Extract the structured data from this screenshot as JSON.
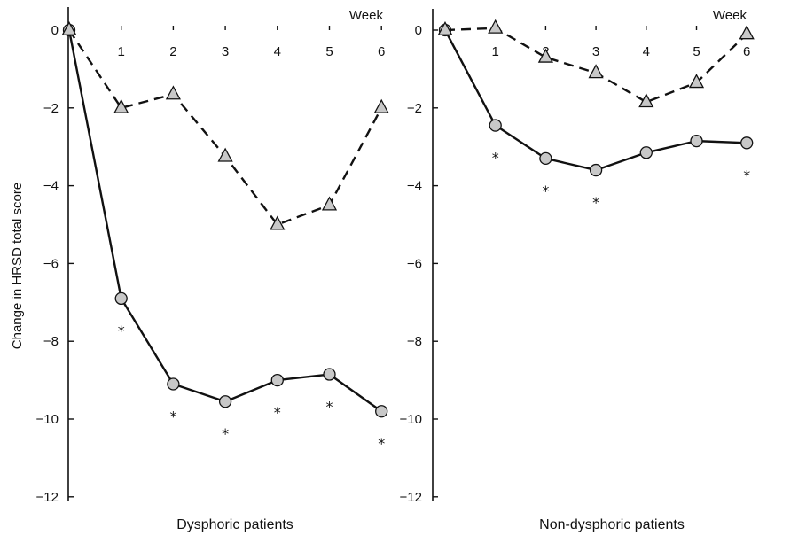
{
  "chart_data": {
    "type": "line",
    "ylabel": "Change in HRSD total score",
    "x_unit_label": "Week",
    "ylim": [
      -12,
      0
    ],
    "yticks": [
      0,
      -2,
      -4,
      -6,
      -8,
      -10,
      -12
    ],
    "ytick_labels": [
      "0",
      "-2",
      "-4",
      "-6",
      "-8",
      "-10",
      "-12"
    ],
    "xticks": [
      1,
      2,
      3,
      4,
      5,
      6
    ],
    "xtick_labels": [
      "1",
      "2",
      "3",
      "4",
      "5",
      "6"
    ],
    "xlim": [
      0,
      6
    ],
    "grid": false,
    "significance_marker": "*",
    "marker_fill": "#c8c8c8",
    "line_color": "#111111",
    "panels": [
      {
        "title": "Dysphoric patients",
        "series": [
          {
            "style": "solid",
            "marker": "circle",
            "x": [
              0,
              1,
              2,
              3,
              4,
              5,
              6
            ],
            "y": [
              0,
              -6.9,
              -9.1,
              -9.55,
              -9.0,
              -8.85,
              -9.8
            ]
          },
          {
            "style": "dashed",
            "marker": "triangle",
            "x": [
              0,
              1,
              2,
              3,
              4,
              5,
              6
            ],
            "y": [
              0,
              -2.0,
              -1.65,
              -3.25,
              -5.0,
              -4.5,
              -2.0
            ]
          }
        ],
        "significant_weeks": [
          1,
          2,
          3,
          4,
          5,
          6
        ]
      },
      {
        "title": "Non-dysphoric patients",
        "series": [
          {
            "style": "solid",
            "marker": "circle",
            "x": [
              0,
              1,
              2,
              3,
              4,
              5,
              6
            ],
            "y": [
              0,
              -2.45,
              -3.3,
              -3.6,
              -3.15,
              -2.85,
              -2.9
            ]
          },
          {
            "style": "dashed",
            "marker": "triangle",
            "x": [
              0,
              1,
              2,
              3,
              4,
              5,
              6
            ],
            "y": [
              0,
              0.05,
              -0.7,
              -1.1,
              -1.85,
              -1.35,
              -0.1
            ]
          }
        ],
        "significant_weeks": [
          1,
          2,
          3,
          6
        ]
      }
    ]
  }
}
